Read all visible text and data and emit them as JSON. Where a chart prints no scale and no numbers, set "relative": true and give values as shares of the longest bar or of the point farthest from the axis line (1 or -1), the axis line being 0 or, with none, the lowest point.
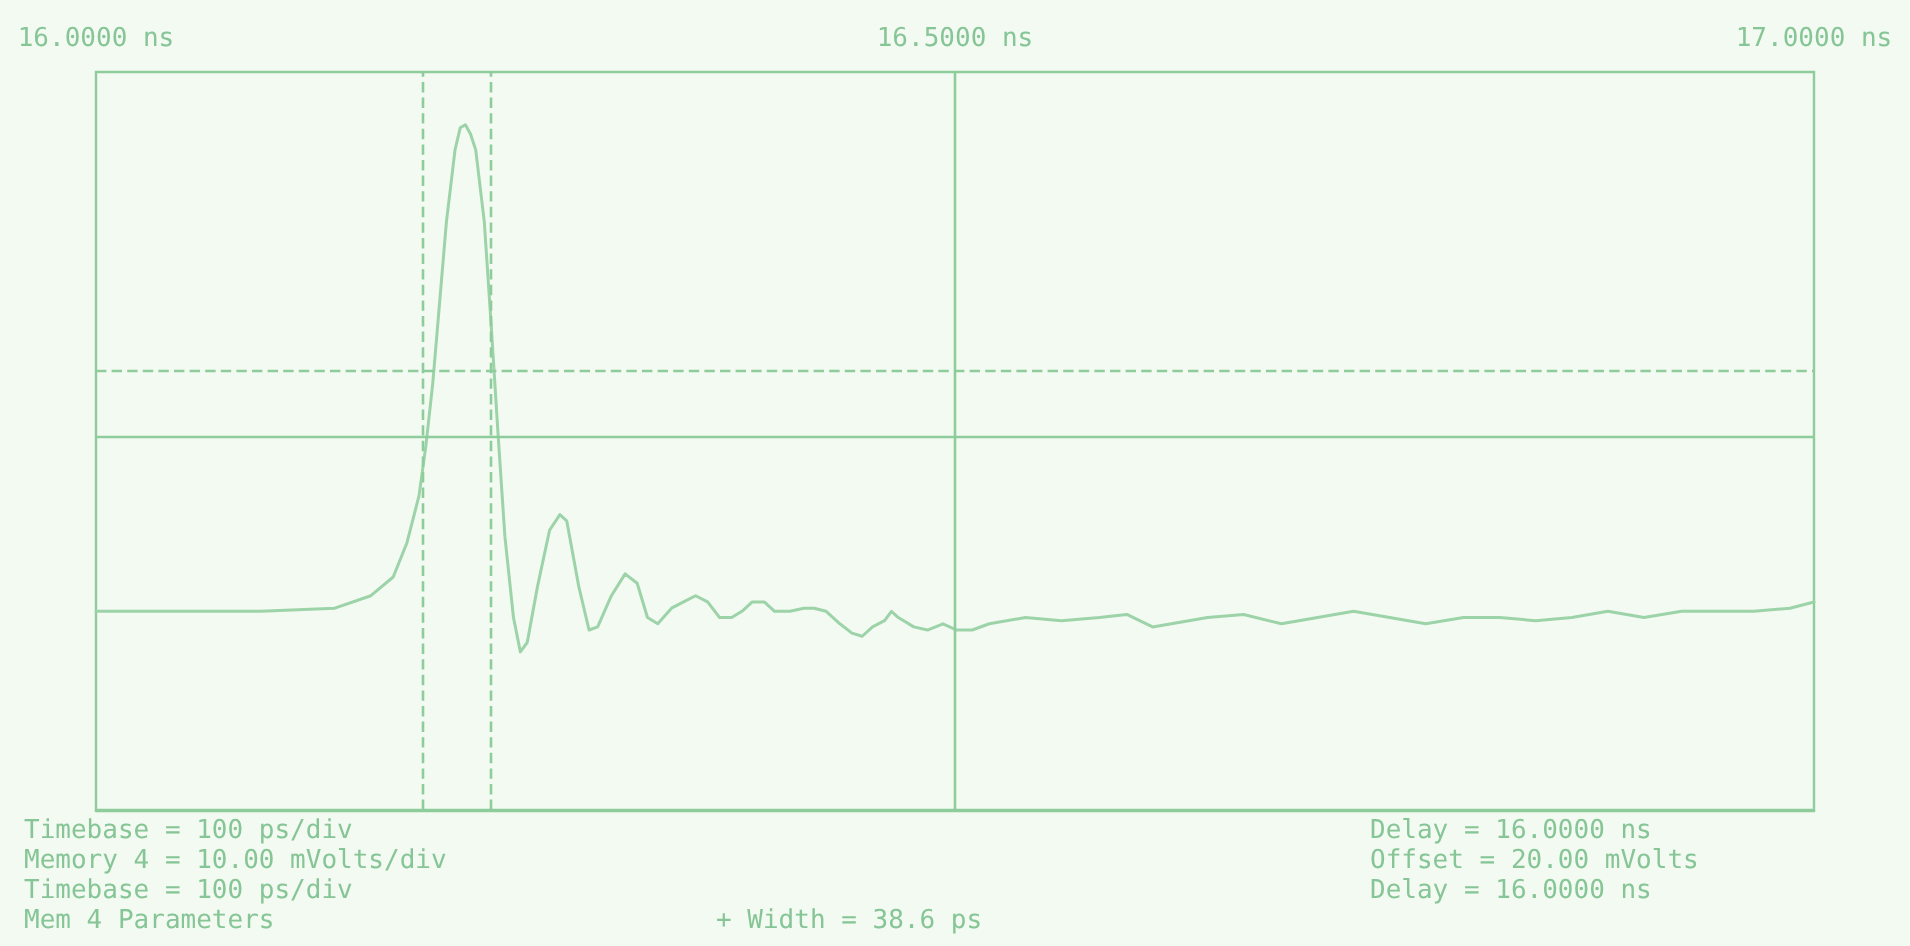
{
  "chart_data": {
    "type": "line",
    "relative": true,
    "xlim": [
      16,
      17
    ],
    "xticks": [
      {
        "value": 16,
        "label": "16.0000 ns"
      },
      {
        "value": 16.5,
        "label": "16.5000 ns"
      },
      {
        "value": 17,
        "label": "17.0000 ns"
      }
    ],
    "x": [
      16.0,
      16.043,
      16.096,
      16.139,
      16.16,
      16.173,
      16.181,
      16.188,
      16.192,
      16.196,
      16.2,
      16.204,
      16.209,
      16.212,
      16.215,
      16.218,
      16.221,
      16.226,
      16.23,
      16.234,
      16.238,
      16.243,
      16.247,
      16.251,
      16.257,
      16.264,
      16.27,
      16.274,
      16.281,
      16.287,
      16.292,
      16.3,
      16.308,
      16.315,
      16.321,
      16.327,
      16.335,
      16.342,
      16.349,
      16.356,
      16.363,
      16.37,
      16.376,
      16.382,
      16.389,
      16.395,
      16.404,
      16.412,
      16.418,
      16.425,
      16.433,
      16.44,
      16.446,
      16.452,
      16.459,
      16.463,
      16.467,
      16.476,
      16.484,
      16.493,
      16.501,
      16.51,
      16.52,
      16.541,
      16.562,
      16.584,
      16.6,
      16.615,
      16.626,
      16.647,
      16.668,
      16.69,
      16.711,
      16.732,
      16.753,
      16.774,
      16.796,
      16.817,
      16.838,
      16.859,
      16.88,
      16.901,
      16.923,
      16.944,
      16.965,
      16.986,
      17.0
    ],
    "series": [
      {
        "color": "#9dd3a8",
        "values": [
          -0.56,
          -0.56,
          -0.56,
          -0.55,
          -0.51,
          -0.45,
          -0.34,
          -0.19,
          -0.03,
          0.17,
          0.43,
          0.69,
          0.92,
          0.99,
          1,
          0.97,
          0.92,
          0.69,
          0.36,
          0.01,
          -0.32,
          -0.58,
          -0.69,
          -0.66,
          -0.48,
          -0.3,
          -0.25,
          -0.27,
          -0.48,
          -0.62,
          -0.61,
          -0.51,
          -0.44,
          -0.47,
          -0.58,
          -0.6,
          -0.55,
          -0.53,
          -0.51,
          -0.53,
          -0.58,
          -0.58,
          -0.56,
          -0.53,
          -0.53,
          -0.56,
          -0.56,
          -0.55,
          -0.55,
          -0.56,
          -0.6,
          -0.63,
          -0.64,
          -0.61,
          -0.59,
          -0.56,
          -0.58,
          -0.61,
          -0.62,
          -0.6,
          -0.62,
          -0.62,
          -0.6,
          -0.58,
          -0.59,
          -0.58,
          -0.57,
          -0.61,
          -0.6,
          -0.58,
          -0.57,
          -0.6,
          -0.58,
          -0.56,
          -0.58,
          -0.6,
          -0.58,
          -0.58,
          -0.59,
          -0.58,
          -0.56,
          -0.58,
          -0.56,
          -0.56,
          -0.56,
          -0.55,
          -0.53
        ]
      }
    ],
    "ref_lines": [
      {
        "axis": "x",
        "value": 16.194,
        "label": null,
        "color": "#8fcc9c",
        "line_style": "dashed"
      },
      {
        "axis": "x",
        "value": 16.233,
        "label": null,
        "color": "#8fcc9c",
        "line_style": "dashed"
      },
      {
        "axis": "y",
        "value": 0.21,
        "label": null,
        "color": "#8fcc9c",
        "line_style": "dashed"
      },
      {
        "axis": "x",
        "value": 16.5,
        "label": null,
        "color": "#8fcc9c",
        "line_style": "solid"
      },
      {
        "axis": "y",
        "value": 0,
        "label": null,
        "color": "#8fcc9c",
        "line_style": "solid"
      }
    ],
    "grid": false,
    "marker": "none",
    "line_style": "solid",
    "annotations": [
      "Timebase = 100 ps/div",
      "Memory 4 = 10.00 mVolts/div",
      "Timebase = 100 ps/div",
      "Mem 4 Parameters",
      "+ Width = 38.6 ps",
      "Delay = 16.0000 ns",
      "Offset = 20.00 mVolts",
      "Delay = 16.0000 ns"
    ]
  }
}
